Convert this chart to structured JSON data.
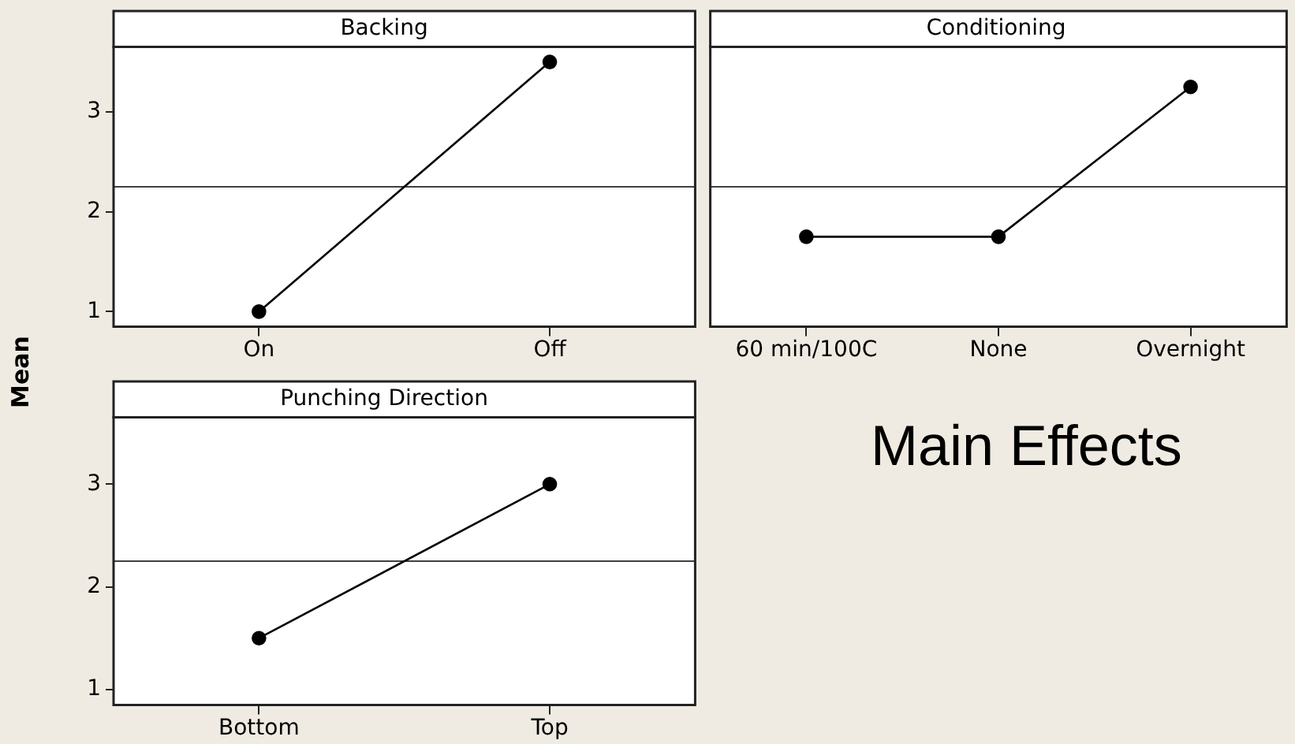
{
  "chart_data": [
    {
      "type": "line",
      "title": "Backing",
      "ylabel": "Mean",
      "categories": [
        "On",
        "Off"
      ],
      "values": [
        1.0,
        3.5
      ],
      "color": "#000000",
      "marker": "circle",
      "line_style": "solid",
      "ylim": [
        0.85,
        3.65
      ],
      "yticks": [
        1,
        2,
        3
      ],
      "grid": false,
      "legend": false,
      "ref_lines": [
        {
          "axis": "y",
          "value": 2.25,
          "color": "#404040"
        }
      ]
    },
    {
      "type": "line",
      "title": "Conditioning",
      "categories": [
        "60 min/100C",
        "None",
        "Overnight"
      ],
      "values": [
        1.75,
        1.75,
        3.25
      ],
      "color": "#000000",
      "marker": "circle",
      "line_style": "solid",
      "ylim": [
        0.85,
        3.65
      ],
      "yticks": [
        1,
        2,
        3
      ],
      "tick_labels": "x",
      "grid": false,
      "legend": false,
      "ref_lines": [
        {
          "axis": "y",
          "value": 2.25,
          "color": "#404040"
        }
      ]
    },
    {
      "type": "line",
      "title": "Punching Direction",
      "categories": [
        "Bottom",
        "Top"
      ],
      "values": [
        1.5,
        3.0
      ],
      "color": "#000000",
      "marker": "circle",
      "line_style": "solid",
      "ylim": [
        0.85,
        3.65
      ],
      "yticks": [
        1,
        2,
        3
      ],
      "grid": false,
      "legend": false,
      "ref_lines": [
        {
          "axis": "y",
          "value": 2.25,
          "color": "#404040"
        }
      ],
      "annotations": [
        "Main Effects"
      ]
    }
  ]
}
